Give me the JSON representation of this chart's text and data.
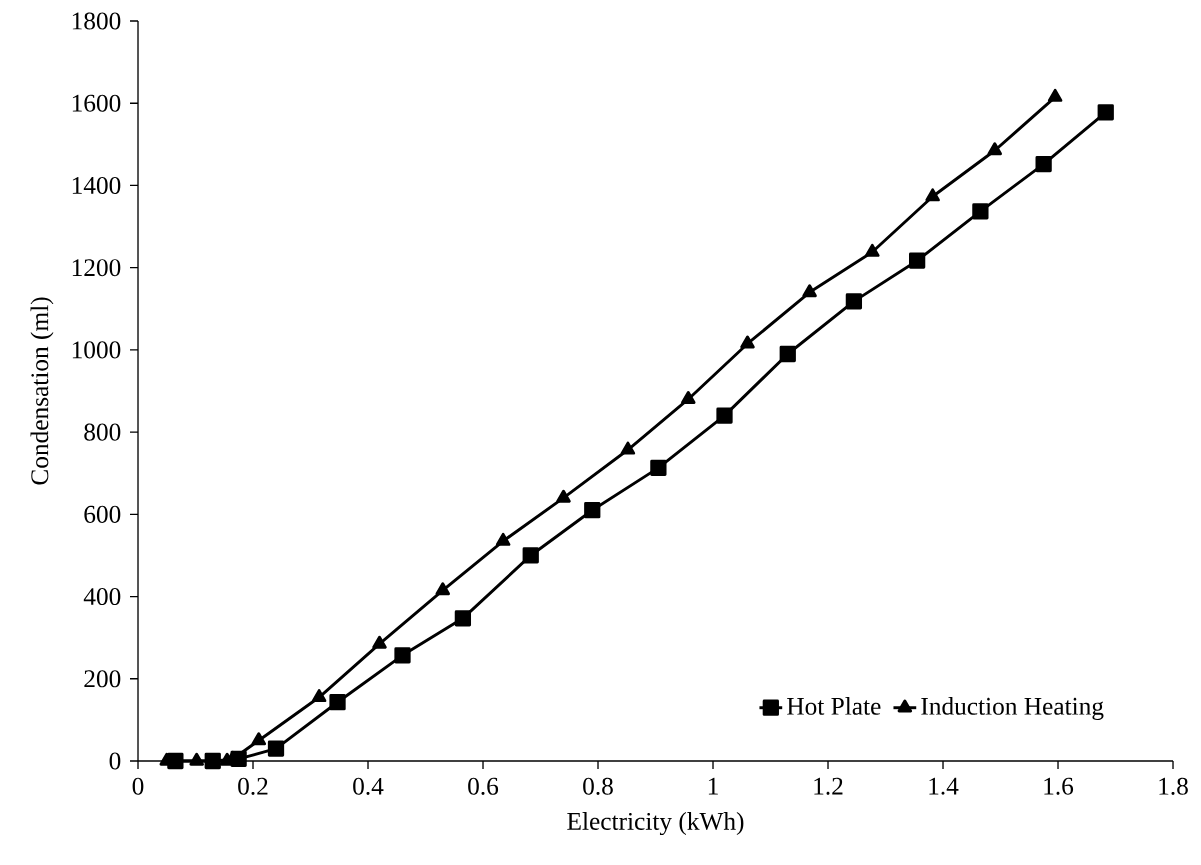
{
  "chart_data": {
    "type": "line",
    "xlabel": "Electricity (kWh)",
    "ylabel": "Condensation (ml)",
    "xlim": [
      0,
      1.8
    ],
    "xticks": [
      0,
      0.2,
      0.4,
      0.6,
      0.8,
      1,
      1.2,
      1.4,
      1.6,
      1.8
    ],
    "ylim": [
      0,
      1800
    ],
    "yticks": [
      0,
      200,
      400,
      600,
      800,
      1000,
      1200,
      1400,
      1600,
      1800
    ],
    "legend": "bottom right",
    "series": [
      {
        "name": "Hot Plate",
        "color": "#000000",
        "marker": "square",
        "x": [
          0.065,
          0.13,
          0.175,
          0.24,
          0.347,
          0.46,
          0.565,
          0.683,
          0.79,
          0.905,
          1.02,
          1.13,
          1.245,
          1.355,
          1.465,
          1.575,
          1.683
        ],
        "values": [
          0,
          0,
          5,
          30,
          143,
          257,
          347,
          500,
          610,
          713,
          840,
          990,
          1118,
          1217,
          1337,
          1452,
          1578
        ]
      },
      {
        "name": "Induction Heating",
        "color": "#000000",
        "marker": "triangle",
        "x": [
          0.05,
          0.102,
          0.155,
          0.165,
          0.21,
          0.315,
          0.42,
          0.53,
          0.635,
          0.74,
          0.852,
          0.957,
          1.06,
          1.168,
          1.277,
          1.382,
          1.49,
          1.595
        ],
        "values": [
          0,
          0,
          0,
          5,
          50,
          155,
          285,
          415,
          535,
          640,
          757,
          880,
          1015,
          1140,
          1238,
          1373,
          1485,
          1615
        ]
      }
    ]
  }
}
